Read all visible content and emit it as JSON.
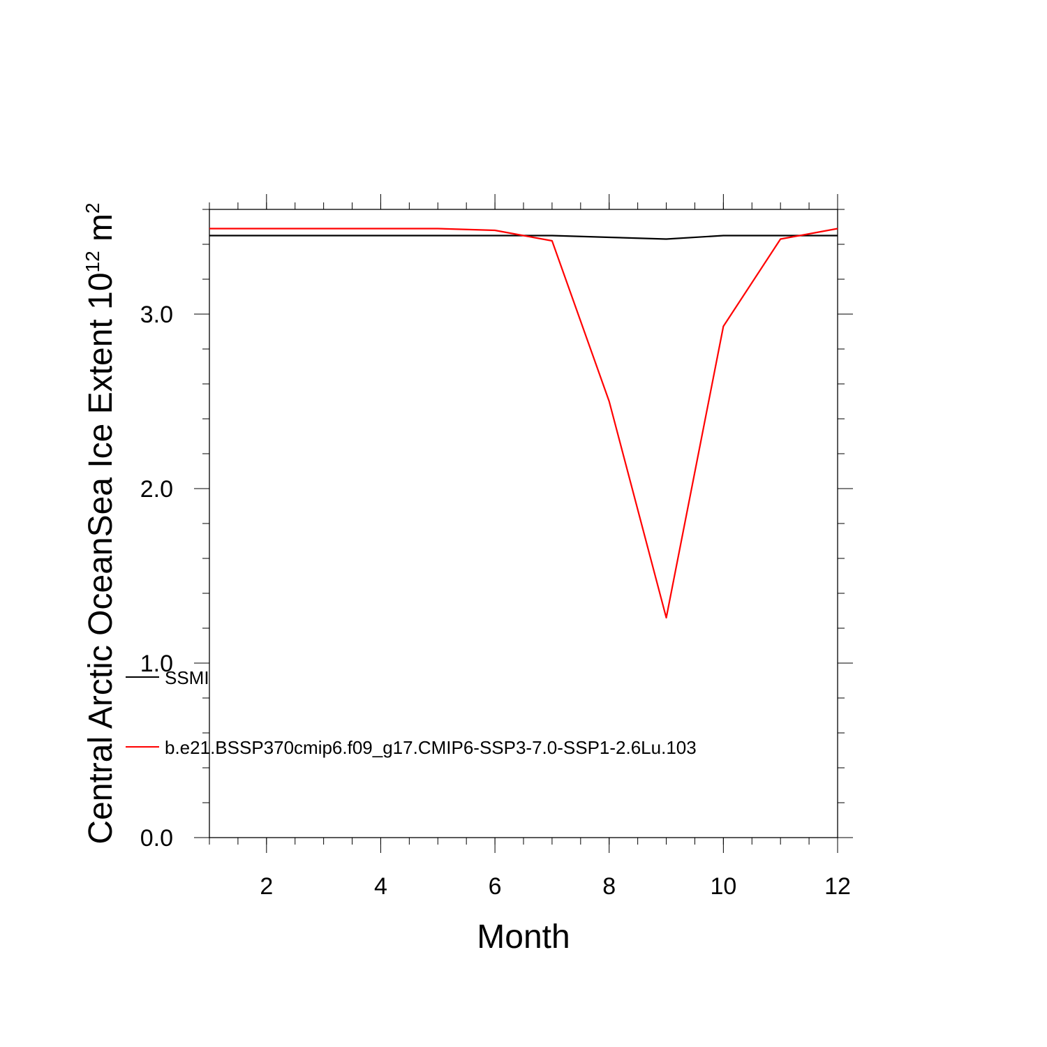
{
  "chart_data": {
    "type": "line",
    "xlabel": "Month",
    "ylabel": {
      "base": "Central Arctic OceanSea Ice Extent 10",
      "exp1": "12",
      "unit": " m",
      "exp2": "2"
    },
    "xlim": [
      1,
      12
    ],
    "ylim": [
      0.0,
      3.6
    ],
    "xticks": [
      2,
      4,
      6,
      8,
      10,
      12
    ],
    "xtick_labels": [
      "2",
      "4",
      "6",
      "8",
      "10",
      "12"
    ],
    "yticks": [
      0.0,
      1.0,
      2.0,
      3.0
    ],
    "ytick_labels": [
      "0.0",
      "1.0",
      "2.0",
      "3.0"
    ],
    "grid": false,
    "legend_position": "lower-left",
    "x": [
      1,
      2,
      3,
      4,
      5,
      6,
      7,
      8,
      9,
      10,
      11,
      12
    ],
    "series": [
      {
        "name": "SSMI",
        "color": "#000000",
        "values": [
          3.45,
          3.45,
          3.45,
          3.45,
          3.45,
          3.45,
          3.45,
          3.44,
          3.43,
          3.45,
          3.45,
          3.45
        ]
      },
      {
        "name": "b.e21.BSSP370cmip6.f09_g17.CMIP6-SSP3-7.0-SSP1-2.6Lu.103",
        "color": "#ff0000",
        "values": [
          3.49,
          3.49,
          3.49,
          3.49,
          3.49,
          3.48,
          3.42,
          2.5,
          1.26,
          2.93,
          3.43,
          3.49
        ]
      }
    ]
  }
}
